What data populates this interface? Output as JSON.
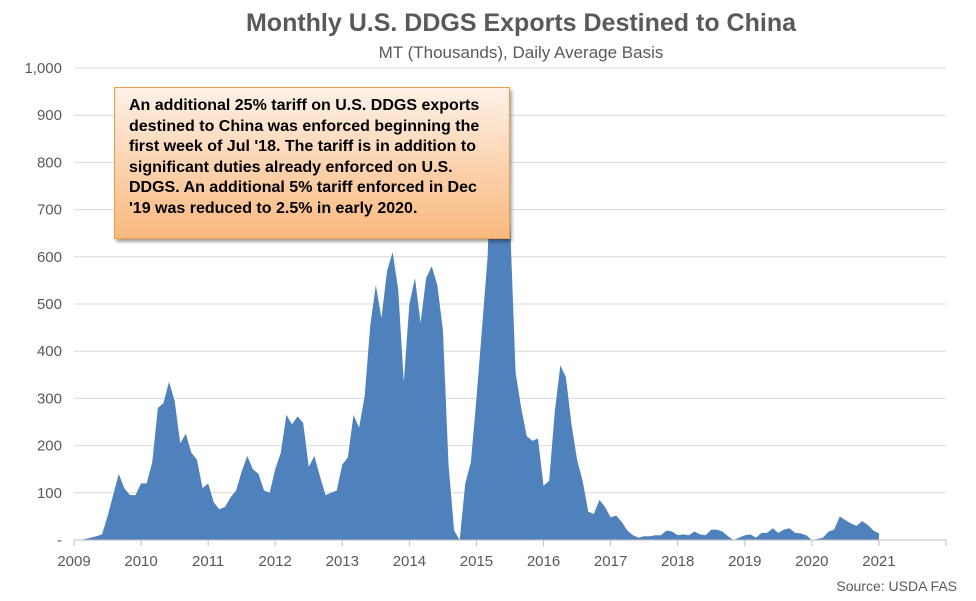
{
  "chart_data": {
    "type": "area",
    "title": "Monthly U.S. DDGS Exports Destined to China",
    "subtitle": "MT (Thousands), Daily Average Basis",
    "source": "Source: USDA FAS",
    "annotation": "An additional 25% tariff on U.S. DDGS exports destined to China was enforced beginning the first week of Jul '18. The tariff is in addition to significant duties already enforced on U.S. DDGS. An additional 5% tariff enforced in Dec '19 was reduced to 2.5% in early 2020.",
    "ylim": [
      0,
      1000
    ],
    "y_ticks": [
      "-",
      "100",
      "200",
      "300",
      "400",
      "500",
      "600",
      "700",
      "800",
      "900",
      "1,000"
    ],
    "x_ticks": [
      "2009",
      "2010",
      "2011",
      "2012",
      "2013",
      "2014",
      "2015",
      "2016",
      "2017",
      "2018",
      "2019",
      "2020",
      "2021"
    ],
    "x_start_year": 2009,
    "grid": true,
    "color": "#4f81bd",
    "series": [
      {
        "values": [
          0,
          0,
          2,
          5,
          8,
          12,
          50,
          95,
          140,
          110,
          95,
          95,
          120,
          120,
          165,
          280,
          290,
          335,
          295,
          205,
          225,
          185,
          170,
          110,
          120,
          80,
          65,
          70,
          90,
          105,
          145,
          178,
          150,
          140,
          105,
          100,
          150,
          185,
          265,
          245,
          262,
          248,
          155,
          178,
          135,
          95,
          100,
          105,
          160,
          175,
          265,
          238,
          305,
          455,
          540,
          470,
          570,
          610,
          530,
          335,
          500,
          555,
          460,
          555,
          580,
          540,
          445,
          160,
          20,
          0,
          120,
          165,
          300,
          450,
          600,
          935,
          895,
          895,
          675,
          355,
          280,
          220,
          210,
          215,
          115,
          125,
          270,
          370,
          345,
          245,
          170,
          125,
          60,
          55,
          85,
          70,
          48,
          52,
          38,
          20,
          10,
          5,
          8,
          8,
          10,
          10,
          20,
          18,
          10,
          12,
          10,
          18,
          12,
          10,
          22,
          22,
          18,
          8,
          0,
          5,
          10,
          12,
          5,
          15,
          15,
          25,
          15,
          22,
          25,
          15,
          14,
          10,
          0,
          2,
          5,
          18,
          22,
          50,
          42,
          35,
          30,
          40,
          32,
          20,
          14
        ]
      }
    ]
  }
}
